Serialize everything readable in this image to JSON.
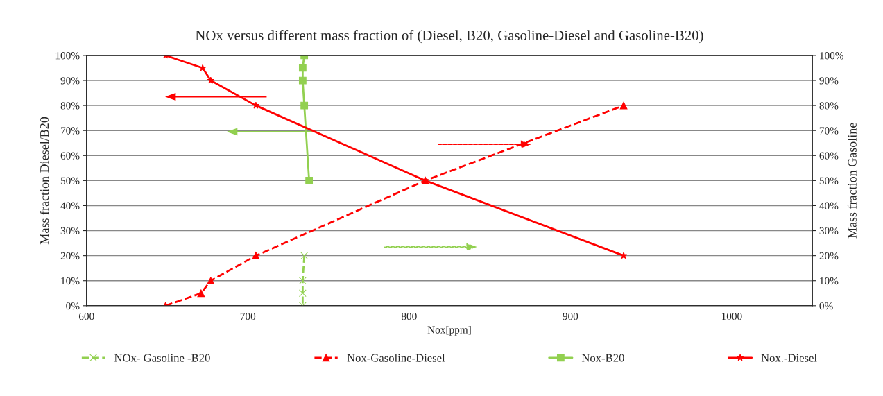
{
  "chart_data": {
    "type": "line",
    "title": "NOx versus different mass fraction of (Diesel, B20, Gasoline-Diesel and Gasoline-B20)",
    "xlabel": "Nox[ppm]",
    "ylabel": "Mass fraction Diesel/B20",
    "y2label": "Mass fraction Gasoline",
    "series": [
      {
        "name": "NOx- Gasoline -B20",
        "color": "#92d050",
        "axis": "y2",
        "marker": "cross",
        "line_style": "dashed",
        "x": [
          735,
          734,
          734,
          734
        ],
        "values": [
          20,
          10,
          5,
          0
        ]
      },
      {
        "name": "Nox-Gasoline-Diesel",
        "color": "#ff0000",
        "axis": "y2",
        "marker": "triangle",
        "line_style": "dashed",
        "x": [
          649,
          671,
          677,
          705,
          810,
          933
        ],
        "values": [
          0,
          5,
          10,
          20,
          50,
          80
        ]
      },
      {
        "name": "Nox-B20",
        "color": "#92d050",
        "axis": "y",
        "marker": "square",
        "line_style": "solid",
        "x": [
          735,
          734,
          734,
          735,
          738
        ],
        "values": [
          100,
          95,
          90,
          80,
          50
        ]
      },
      {
        "name": "Nox.-Diesel",
        "color": "#ff0000",
        "axis": "y",
        "marker": "star",
        "line_style": "solid",
        "x": [
          649,
          672,
          677,
          705,
          810,
          933
        ],
        "values": [
          100,
          95,
          90,
          80,
          50,
          20
        ]
      }
    ],
    "xlim": [
      600,
      1050
    ],
    "xticks": [
      600,
      700,
      800,
      900,
      1000
    ],
    "ylim": [
      0,
      100
    ],
    "yticks": [
      {
        "value": 0,
        "label": "0%"
      },
      {
        "value": 10,
        "label": "10%"
      },
      {
        "value": 20,
        "label": "20%"
      },
      {
        "value": 30,
        "label": "30%"
      },
      {
        "value": 40,
        "label": "40%"
      },
      {
        "value": 50,
        "label": "50%"
      },
      {
        "value": 60,
        "label": "60%"
      },
      {
        "value": 70,
        "label": "70%"
      },
      {
        "value": 80,
        "label": "80%"
      },
      {
        "value": 90,
        "label": "90%"
      },
      {
        "value": 100,
        "label": "100%"
      }
    ],
    "y2lim": [
      0,
      100
    ],
    "y2ticks": [
      {
        "value": 0,
        "label": "0%"
      },
      {
        "value": 10,
        "label": "10%"
      },
      {
        "value": 20,
        "label": "20%"
      },
      {
        "value": 30,
        "label": "30%"
      },
      {
        "value": 40,
        "label": "40%"
      },
      {
        "value": 50,
        "label": "50%"
      },
      {
        "value": 60,
        "label": "60%"
      },
      {
        "value": 70,
        "label": "70%"
      },
      {
        "value": 80,
        "label": "80%"
      },
      {
        "value": 90,
        "label": "90%"
      },
      {
        "value": 100,
        "label": "100%"
      }
    ],
    "grid": "y",
    "legend": "bottom"
  }
}
